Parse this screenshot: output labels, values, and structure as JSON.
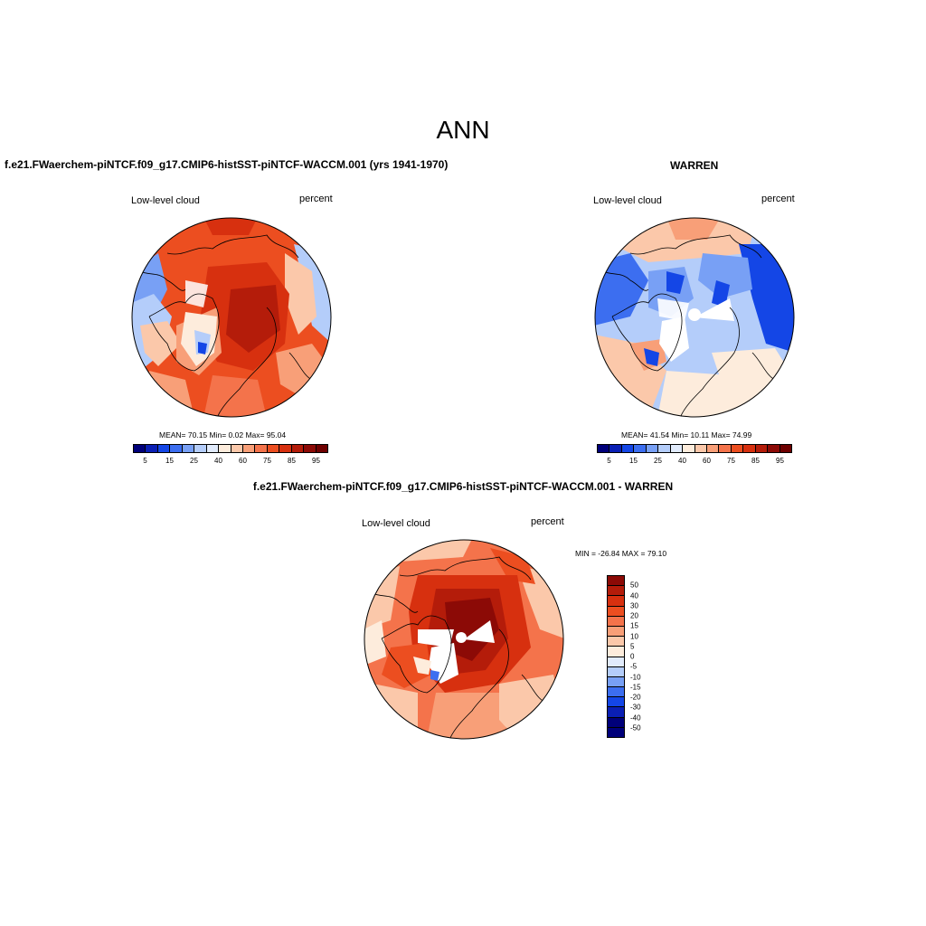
{
  "title": "ANN",
  "panels": [
    {
      "case": "f.e21.FWaerchem-piNTCF.f09_g17.CMIP6-histSST-piNTCF-WACCM.001 (yrs 1941-1970)",
      "variable": "Low-level cloud",
      "units": "percent",
      "stats": "MEAN=  70.15  Min=   0.02  Max=  95.04",
      "colorbar_ticks": [
        "5",
        "15",
        "25",
        "40",
        "60",
        "75",
        "85",
        "95"
      ],
      "colorbar_colors": [
        "#00007a",
        "#0a1fb4",
        "#1446e6",
        "#3c6ef0",
        "#78a0f5",
        "#b4cdfa",
        "#e1ebfc",
        "#fdecdc",
        "#fbc8aa",
        "#f89f78",
        "#f4734b",
        "#ec4e20",
        "#d7300f",
        "#b41c0a",
        "#8c0a06",
        "#6e0000"
      ]
    },
    {
      "case": "WARREN",
      "variable": "Low-level cloud",
      "units": "percent",
      "stats": "MEAN=  41.54  Min=  10.11  Max=  74.99",
      "colorbar_ticks": [
        "5",
        "15",
        "25",
        "40",
        "60",
        "75",
        "85",
        "95"
      ],
      "colorbar_colors": [
        "#00007a",
        "#0a1fb4",
        "#1446e6",
        "#3c6ef0",
        "#78a0f5",
        "#b4cdfa",
        "#e1ebfc",
        "#fdecdc",
        "#fbc8aa",
        "#f89f78",
        "#f4734b",
        "#ec4e20",
        "#d7300f",
        "#b41c0a",
        "#8c0a06",
        "#6e0000"
      ]
    }
  ],
  "diff": {
    "case": "f.e21.FWaerchem-piNTCF.f09_g17.CMIP6-histSST-piNTCF-WACCM.001 - WARREN",
    "variable": "Low-level cloud",
    "units": "percent",
    "stats": "MIN = -26.84 MAX =  79.10",
    "colorbar_ticks": [
      "50",
      "40",
      "30",
      "20",
      "15",
      "10",
      "5",
      "0",
      "-5",
      "-10",
      "-15",
      "-20",
      "-30",
      "-40",
      "-50"
    ],
    "colorbar_colors": [
      "#8c0a06",
      "#b41c0a",
      "#d7300f",
      "#ec4e20",
      "#f4734b",
      "#f89f78",
      "#fbc8aa",
      "#fdecdc",
      "#e1ebfc",
      "#b4cdfa",
      "#78a0f5",
      "#3c6ef0",
      "#1446e6",
      "#0a1fb4",
      "#00007a",
      "#00007a"
    ]
  }
}
